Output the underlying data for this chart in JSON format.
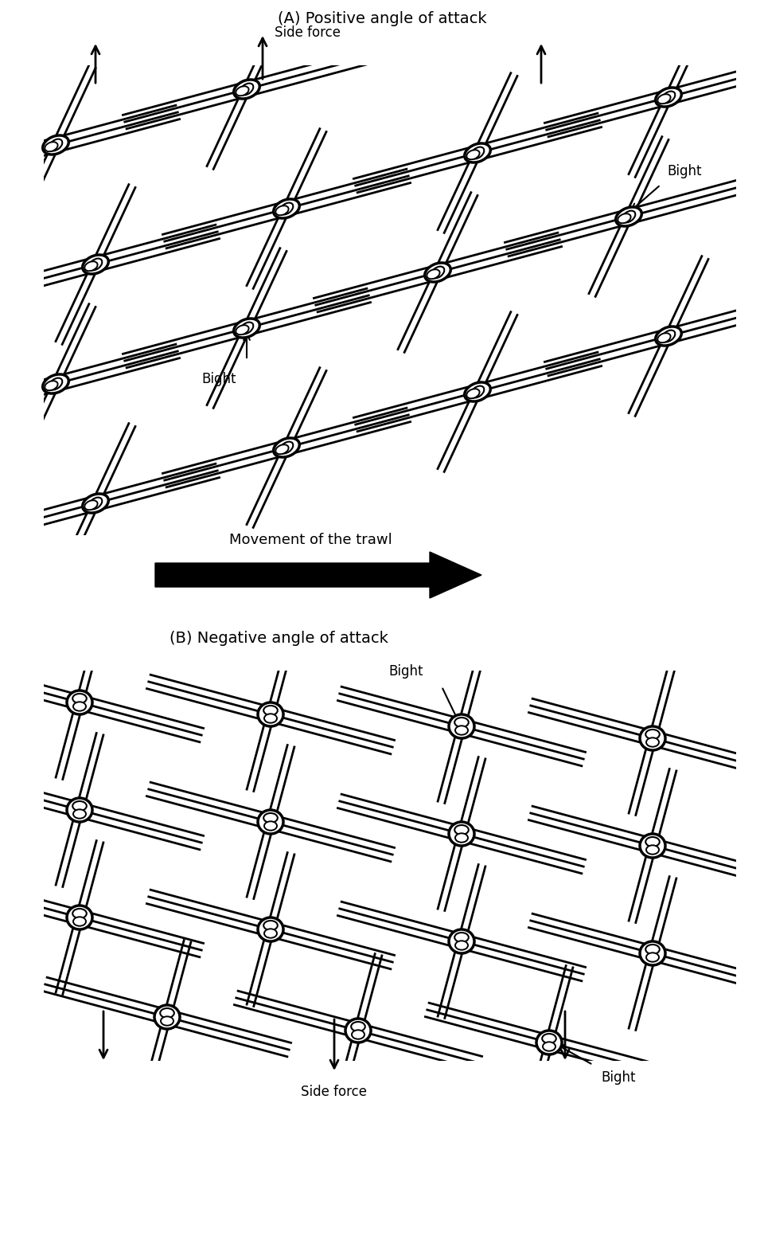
{
  "title_A": "(A) Positive angle of attack",
  "title_B": "(B) Negative angle of attack",
  "trawl_label": "Movement of the trawl",
  "side_force": "Side force",
  "bight": "Bight",
  "bg_color": "#ffffff",
  "line_color": "#000000",
  "fig_width": 9.6,
  "fig_height": 15.62,
  "title_fontsize": 14,
  "label_fontsize": 12,
  "lw_rope": 2.0,
  "lw_knot": 2.5
}
